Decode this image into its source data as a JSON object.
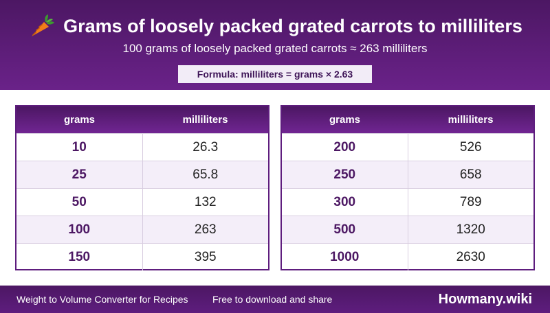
{
  "header": {
    "icon": "carrot-icon",
    "title": "Grams of loosely packed grated carrots to milliliters",
    "subtitle": "100 grams of loosely packed grated carrots ≈ 263 milliliters",
    "formula": "Formula: milliliters = grams × 2.63"
  },
  "tables": [
    {
      "headers": [
        "grams",
        "milliliters"
      ],
      "rows": [
        [
          "10",
          "26.3"
        ],
        [
          "25",
          "65.8"
        ],
        [
          "50",
          "132"
        ],
        [
          "100",
          "263"
        ],
        [
          "150",
          "395"
        ]
      ]
    },
    {
      "headers": [
        "grams",
        "milliliters"
      ],
      "rows": [
        [
          "200",
          "526"
        ],
        [
          "250",
          "658"
        ],
        [
          "300",
          "789"
        ],
        [
          "500",
          "1320"
        ],
        [
          "1000",
          "2630"
        ]
      ]
    }
  ],
  "footer": {
    "left": "Weight to Volume Converter for Recipes",
    "mid": "Free to download and share",
    "brand": "Howmany.wiki"
  },
  "colors": {
    "brand_purple": "#5e1d7e",
    "header_dark": "#4c1763",
    "row_alt": "#f4eef9"
  }
}
